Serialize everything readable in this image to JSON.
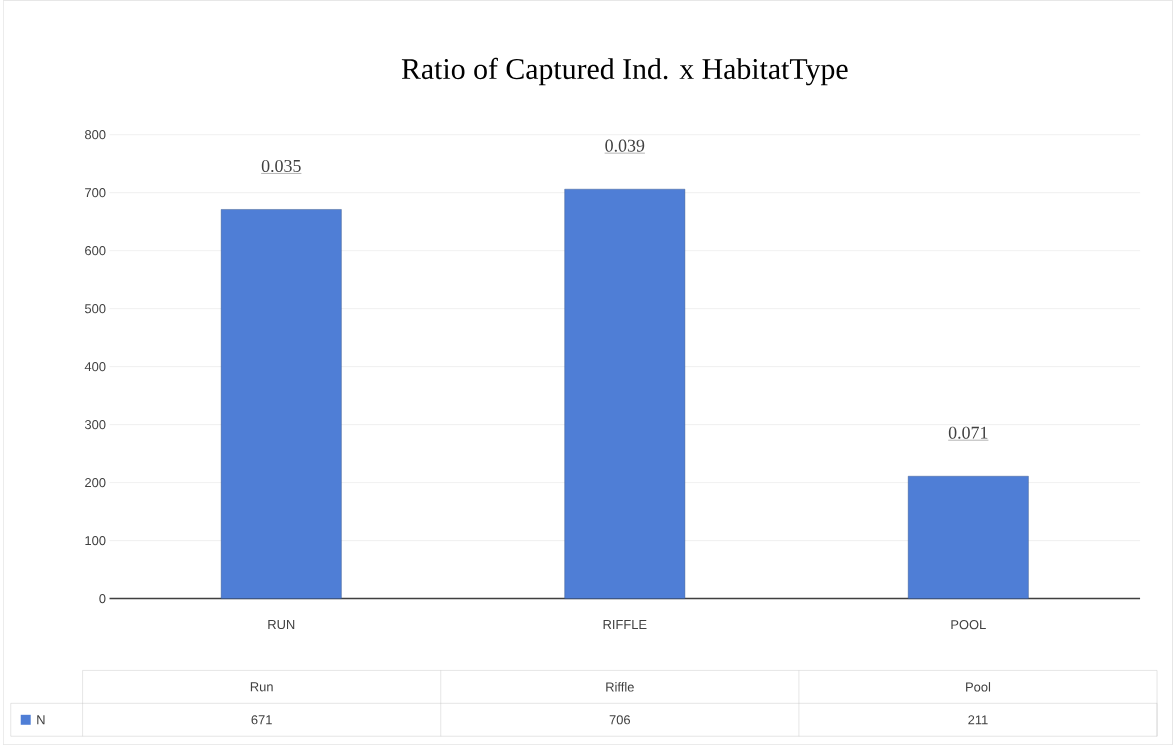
{
  "chart_data": {
    "type": "bar",
    "title": "Ratio of Captured Ind. x HabitatType",
    "categories": [
      "RUN",
      "RIFFLE",
      "POOL"
    ],
    "series": [
      {
        "name": "N",
        "color": "#4f7ed6",
        "values": [
          671,
          706,
          211
        ]
      }
    ],
    "ylim": [
      0,
      800
    ],
    "yticks": [
      0,
      100,
      200,
      300,
      400,
      500,
      600,
      700,
      800
    ],
    "grid": "y",
    "data_labels": true,
    "annotations": [
      "0.035",
      "0.039",
      "0.071",
      "Run",
      "Riffle",
      "Pool"
    ]
  }
}
